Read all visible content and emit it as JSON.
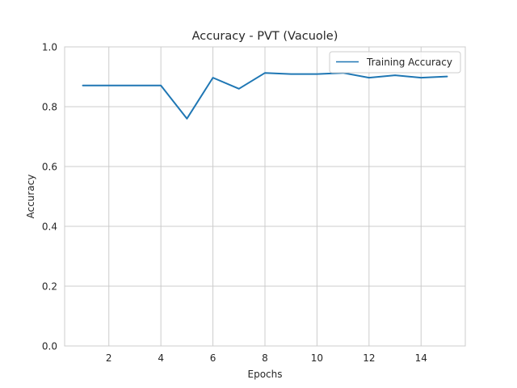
{
  "chart_data": {
    "type": "line",
    "title": "Accuracy - PVT (Vacuole)",
    "xlabel": "Epochs",
    "ylabel": "Accuracy",
    "xlim": [
      0.3,
      15.7
    ],
    "ylim": [
      0.0,
      1.0
    ],
    "xticks": [
      2,
      4,
      6,
      8,
      10,
      12,
      14
    ],
    "xtick_labels": [
      "2",
      "4",
      "6",
      "8",
      "10",
      "12",
      "14"
    ],
    "yticks": [
      0.0,
      0.2,
      0.4,
      0.6,
      0.8,
      1.0
    ],
    "ytick_labels": [
      "0.0",
      "0.2",
      "0.4",
      "0.6",
      "0.8",
      "1.0"
    ],
    "grid": true,
    "legend_position": "top-right",
    "series": [
      {
        "name": "Training Accuracy",
        "color": "#1f77b4",
        "x": [
          1,
          2,
          3,
          4,
          5,
          6,
          7,
          8,
          9,
          10,
          11,
          12,
          13,
          14,
          15
        ],
        "y": [
          0.871,
          0.871,
          0.871,
          0.871,
          0.76,
          0.897,
          0.86,
          0.913,
          0.909,
          0.909,
          0.913,
          0.897,
          0.905,
          0.897,
          0.901
        ]
      }
    ]
  }
}
